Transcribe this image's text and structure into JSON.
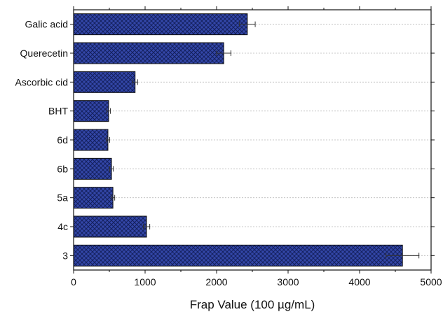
{
  "chart_data": {
    "type": "bar",
    "orientation": "horizontal",
    "categories": [
      "Galic acid",
      "Querecetin",
      "Ascorbic cid",
      "BHT",
      "6d",
      "6b",
      "5a",
      "4c",
      "3"
    ],
    "values": [
      2430,
      2100,
      860,
      490,
      480,
      530,
      550,
      1020,
      4600
    ],
    "errors": [
      110,
      100,
      35,
      25,
      25,
      25,
      25,
      45,
      230
    ],
    "xlabel": "Frap Value (100 µg/mL)",
    "ylabel": "",
    "xlim": [
      0,
      5000
    ],
    "xticks": [
      0,
      1000,
      2000,
      3000,
      4000,
      5000
    ],
    "grid": "horizontal dotted",
    "bar_fill": "#3347a8",
    "bar_pattern": "crosshatch",
    "hatch_color": "#14205e",
    "bar_edge": "#111111"
  }
}
